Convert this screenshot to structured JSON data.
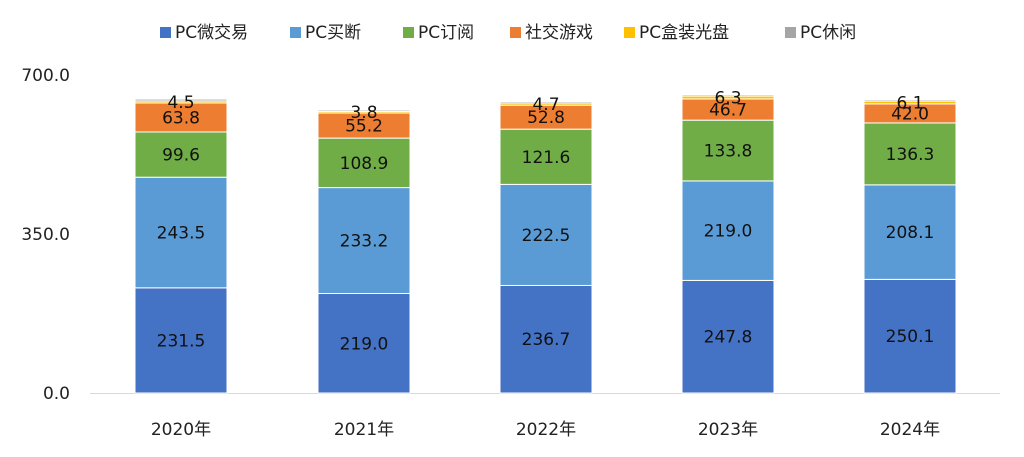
{
  "chart_data": {
    "type": "bar",
    "stacked": true,
    "categories": [
      "2020年",
      "2021年",
      "2022年",
      "2023年",
      "2024年"
    ],
    "series": [
      {
        "name": "PC微交易",
        "color": "#4472C4",
        "values": [
          231.5,
          219.0,
          236.7,
          247.8,
          250.1
        ]
      },
      {
        "name": "PC买断",
        "color": "#5B9BD5",
        "values": [
          243.5,
          233.2,
          222.5,
          219.0,
          208.1
        ]
      },
      {
        "name": "PC订阅",
        "color": "#70AD47",
        "values": [
          99.6,
          108.9,
          121.6,
          133.8,
          136.3
        ]
      },
      {
        "name": "社交游戏",
        "color": "#ED7D31",
        "values": [
          63.8,
          55.2,
          52.8,
          46.7,
          42.0
        ]
      },
      {
        "name": "PC盒装光盘",
        "color": "#FFC000",
        "values": [
          4.5,
          3.8,
          4.7,
          6.3,
          6.1
        ]
      },
      {
        "name": "PC休闲",
        "color": "#A5A5A5",
        "values": [
          4.0,
          3.0,
          3.0,
          3.0,
          3.0
        ]
      }
    ],
    "labeled_series": [
      "PC微交易",
      "PC买断",
      "PC订阅",
      "社交游戏",
      "PC盒装光盘"
    ],
    "y_ticks": [
      "0.0",
      "350.0",
      "700.0"
    ],
    "ylim": [
      0,
      700
    ],
    "grid": false,
    "legend_position": "top"
  }
}
